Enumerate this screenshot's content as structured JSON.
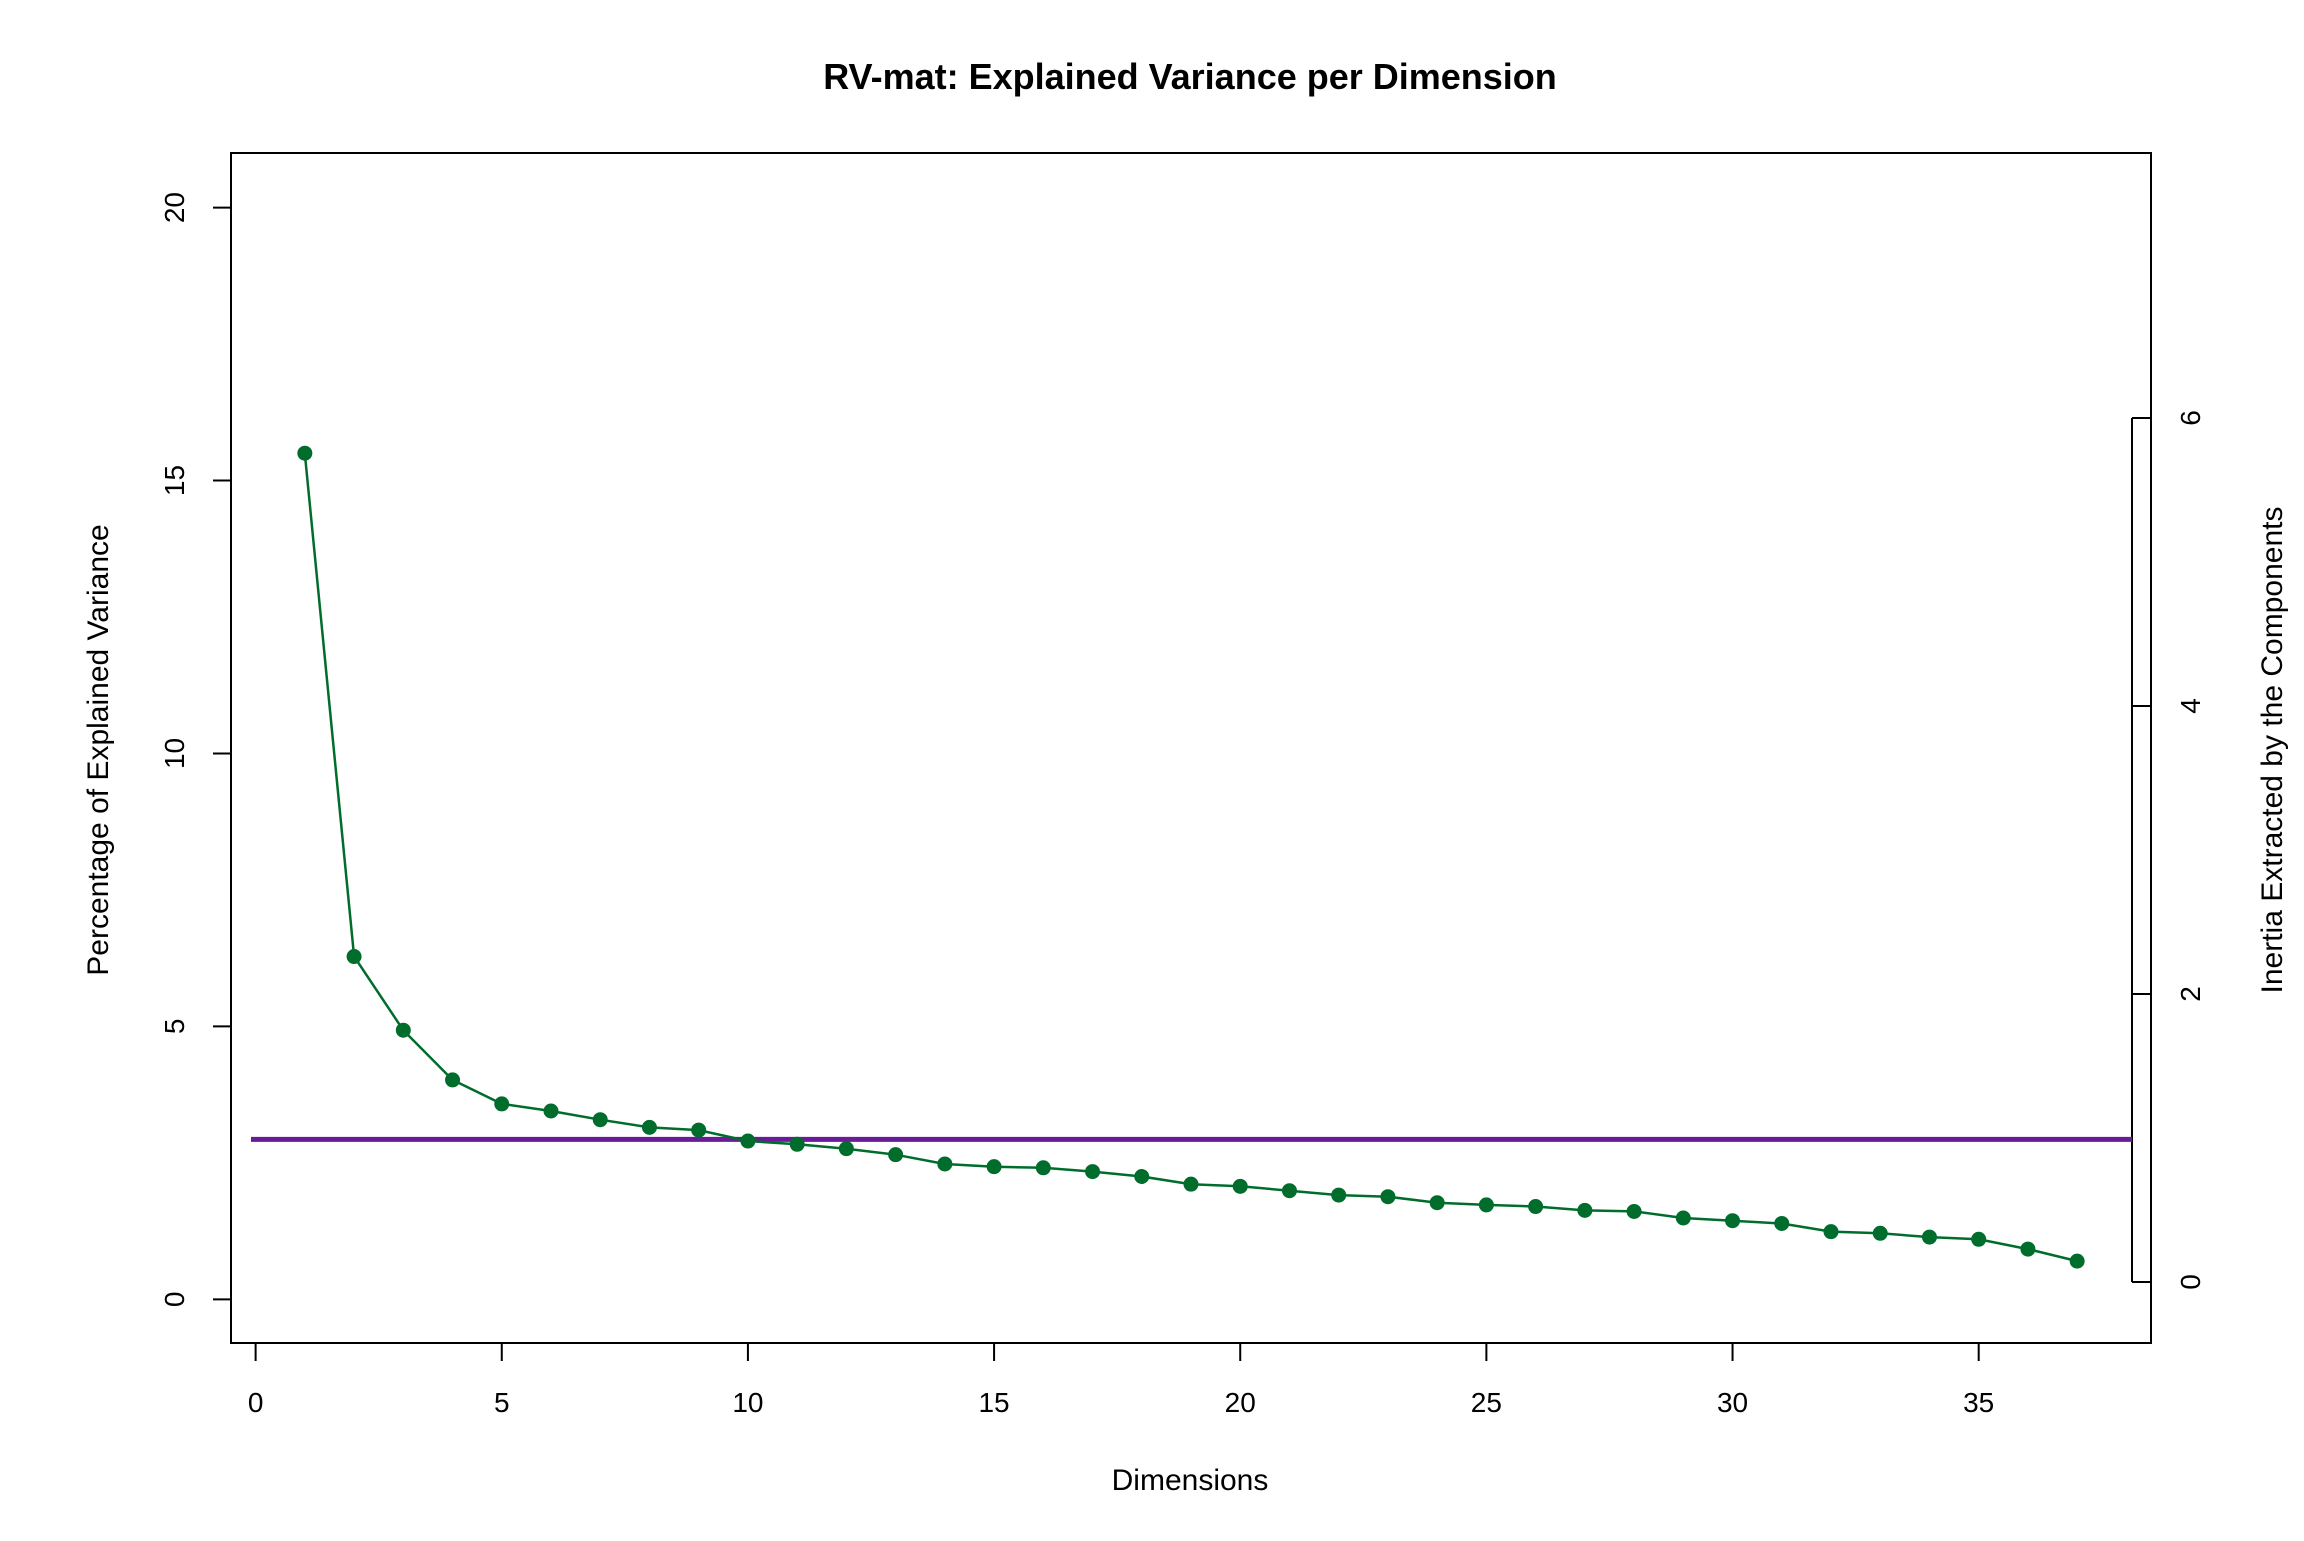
{
  "chart_data": {
    "type": "line",
    "title": "RV-mat: Explained Variance per Dimension",
    "xlabel": "Dimensions",
    "ylabel": "Percentage of Explained Variance",
    "y2label": "Inertia Extracted by the Components",
    "xlim": [
      -0.5,
      38.5
    ],
    "ylim": [
      -0.8,
      21.0
    ],
    "y2lim": [
      0,
      6
    ],
    "xticks": [
      0,
      5,
      10,
      15,
      20,
      25,
      30,
      35
    ],
    "yticks": [
      0,
      5,
      10,
      15,
      20
    ],
    "y2ticks": [
      0,
      2,
      4,
      6
    ],
    "grid": false,
    "series": [
      {
        "color": "#006d2c",
        "marker": "circle",
        "x": [
          1,
          2,
          3,
          4,
          5,
          6,
          7,
          8,
          9,
          10,
          11,
          12,
          13,
          14,
          15,
          16,
          17,
          18,
          19,
          20,
          21,
          22,
          23,
          24,
          25,
          26,
          27,
          28,
          29,
          30,
          31,
          32,
          33,
          34,
          35,
          36,
          37
        ],
        "values": [
          15.5,
          6.28,
          4.93,
          4.02,
          3.58,
          3.45,
          3.29,
          3.15,
          3.1,
          2.9,
          2.84,
          2.76,
          2.65,
          2.48,
          2.43,
          2.41,
          2.34,
          2.25,
          2.11,
          2.07,
          1.99,
          1.91,
          1.88,
          1.77,
          1.73,
          1.7,
          1.63,
          1.61,
          1.49,
          1.44,
          1.39,
          1.24,
          1.21,
          1.14,
          1.1,
          0.92,
          0.7
        ]
      }
    ],
    "reference_line": {
      "color": "#6a1b9a",
      "y": 2.93
    }
  }
}
